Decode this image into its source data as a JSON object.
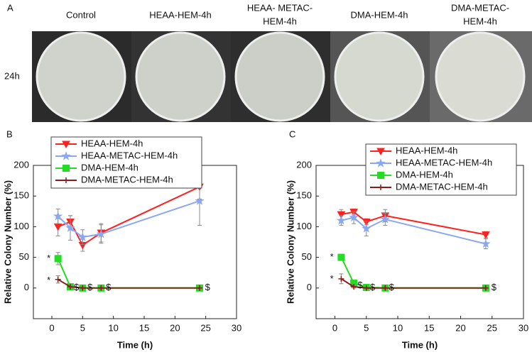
{
  "panel_a": {
    "label": "A",
    "row_label": "24h",
    "columns": [
      [
        "Control"
      ],
      [
        "HEAA-HEM-4h"
      ],
      [
        "HEAA- METAC-",
        "HEM-4h"
      ],
      [
        "DMA-HEM-4h"
      ],
      [
        "DMA-METAC-",
        "HEM-4h"
      ]
    ]
  },
  "chart_data": [
    {
      "type": "line",
      "label": "B",
      "xlabel": "Time (h)",
      "ylabel": "Relative Colony Number (%)",
      "x": [
        1,
        3,
        5,
        8,
        24
      ],
      "xlim": [
        -3,
        30
      ],
      "xticks": [
        0,
        5,
        10,
        15,
        20,
        25,
        30
      ],
      "ylim": [
        -50,
        200
      ],
      "yticks": [
        0,
        50,
        100,
        150,
        200
      ],
      "series": [
        {
          "name": "HEAA-HEM-4h",
          "color": "#ff2020",
          "marker": "triangle-down",
          "values": [
            100,
            108,
            70,
            90,
            165
          ],
          "errors": [
            15,
            10,
            10,
            15,
            20
          ]
        },
        {
          "name": "HEAA-METAC-HEM-4h",
          "color": "#8aa8f0",
          "marker": "star",
          "values": [
            117,
            98,
            83,
            88,
            142
          ],
          "errors": [
            12,
            20,
            12,
            15,
            40
          ]
        },
        {
          "name": "DMA-HEM-4h",
          "color": "#22dd22",
          "marker": "square",
          "values": [
            48,
            2,
            0,
            0,
            0
          ],
          "errors": [
            10,
            3,
            2,
            2,
            2
          ]
        },
        {
          "name": "DMA-METAC-HEM-4h",
          "color": "#8b1a1a",
          "marker": "plus",
          "values": [
            14,
            2,
            0,
            0,
            0
          ],
          "errors": [
            6,
            2,
            1,
            1,
            1
          ]
        }
      ],
      "annotations": [
        {
          "text": "*",
          "x": -0.5,
          "y": 48
        },
        {
          "text": "*",
          "x": -0.5,
          "y": 12
        },
        {
          "text": "$",
          "x": 4,
          "y": 0
        },
        {
          "text": "$",
          "x": 6.2,
          "y": 0
        },
        {
          "text": "$",
          "x": 9.2,
          "y": 0
        },
        {
          "text": "$",
          "x": 25.3,
          "y": 0
        }
      ]
    },
    {
      "type": "line",
      "label": "C",
      "xlabel": "Time (h)",
      "ylabel": "Relative Colony Number (%)",
      "x": [
        1,
        3,
        5,
        8,
        24
      ],
      "xlim": [
        -3,
        30
      ],
      "xticks": [
        0,
        5,
        10,
        15,
        20,
        25,
        30
      ],
      "ylim": [
        -50,
        200
      ],
      "yticks": [
        0,
        50,
        100,
        150,
        200
      ],
      "series": [
        {
          "name": "HEAA-HEM-4h",
          "color": "#ff2020",
          "marker": "triangle-down",
          "values": [
            120,
            124,
            108,
            118,
            87
          ],
          "errors": [
            8,
            5,
            5,
            10,
            5
          ]
        },
        {
          "name": "HEAA-METAC-HEM-4h",
          "color": "#8aa8f0",
          "marker": "star",
          "values": [
            110,
            115,
            97,
            112,
            72
          ],
          "errors": [
            8,
            10,
            12,
            10,
            8
          ]
        },
        {
          "name": "DMA-HEM-4h",
          "color": "#22dd22",
          "marker": "square",
          "values": [
            50,
            8,
            1,
            0,
            0
          ],
          "errors": [
            5,
            3,
            1,
            1,
            1
          ]
        },
        {
          "name": "DMA-METAC-HEM-4h",
          "color": "#8b1a1a",
          "marker": "plus",
          "values": [
            15,
            2,
            0,
            0,
            0
          ],
          "errors": [
            8,
            2,
            1,
            1,
            1
          ]
        }
      ],
      "annotations": [
        {
          "text": "*",
          "x": -0.5,
          "y": 50
        },
        {
          "text": "*",
          "x": -0.5,
          "y": 14
        },
        {
          "text": "$",
          "x": 4,
          "y": 4
        },
        {
          "text": "$",
          "x": 6,
          "y": 0
        },
        {
          "text": "$",
          "x": 9,
          "y": 0
        },
        {
          "text": "$",
          "x": 25.3,
          "y": 0
        }
      ]
    }
  ]
}
